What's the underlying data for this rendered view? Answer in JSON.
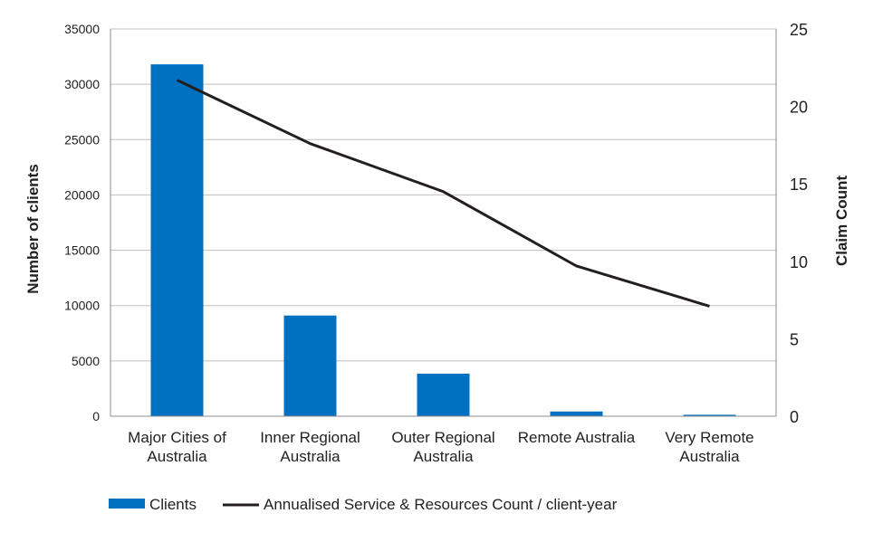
{
  "chart_data": {
    "type": "bar",
    "categories": [
      [
        "Major Cities of",
        "Australia"
      ],
      [
        "Inner Regional",
        "Australia"
      ],
      [
        "Outer Regional",
        "Australia"
      ],
      [
        "Remote Australia"
      ],
      [
        "Very Remote",
        "Australia"
      ]
    ],
    "series": [
      {
        "name": "Clients",
        "type": "bar",
        "axis": "left",
        "color": "#0070C0",
        "values": [
          31800,
          9100,
          3850,
          430,
          130
        ]
      },
      {
        "name": "Annualised Service & Resources Count / client-year",
        "type": "line",
        "axis": "right",
        "color": "#231F20",
        "values": [
          21.7,
          17.6,
          14.5,
          9.7,
          7.1
        ]
      }
    ],
    "left_axis": {
      "label": "Number of clients",
      "range": [
        0,
        35000
      ],
      "ticks": [
        "0",
        "5000",
        "10000",
        "15000",
        "20000",
        "25000",
        "30000",
        "35000"
      ]
    },
    "right_axis": {
      "label": "Claim Count",
      "range": [
        0,
        25
      ],
      "ticks": [
        "0",
        "5",
        "10",
        "15",
        "20",
        "25"
      ]
    },
    "grid": true,
    "gridline_color": "#BFBFBF",
    "legend_position": "bottom-left"
  }
}
